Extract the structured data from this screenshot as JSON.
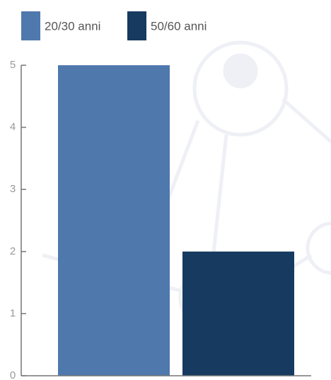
{
  "chart_data": {
    "type": "bar",
    "categories": [
      null
    ],
    "series": [
      {
        "name": "20/30 anni",
        "color": "#4f78ad",
        "values": [
          5
        ]
      },
      {
        "name": "50/60 anni",
        "color": "#163a60",
        "values": [
          2
        ]
      }
    ],
    "ylim": [
      0,
      5
    ],
    "yticks": [
      0,
      1,
      2,
      3,
      4,
      5
    ],
    "legend": "top-left"
  }
}
